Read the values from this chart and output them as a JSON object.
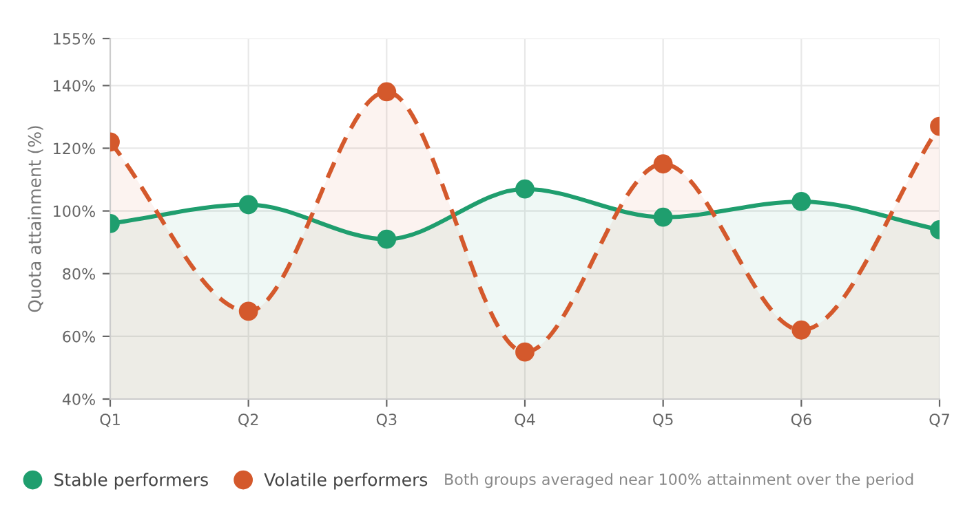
{
  "chart_data": {
    "type": "area",
    "ylabel": "Quota attainment (%)",
    "categories": [
      "Q1",
      "Q2",
      "Q3",
      "Q4",
      "Q5",
      "Q6",
      "Q7"
    ],
    "series": [
      {
        "name": "Stable performers",
        "color": "#1f9e6e",
        "values": [
          96,
          102,
          91,
          107,
          98,
          103,
          94
        ],
        "line_style": "solid"
      },
      {
        "name": "Volatile performers",
        "color": "#d4592c",
        "values": [
          122,
          68,
          138,
          55,
          115,
          62,
          127
        ],
        "line_style": "dashed"
      }
    ],
    "ylim": [
      40,
      155
    ],
    "yticks": [
      {
        "value": 40,
        "label": "40%"
      },
      {
        "value": 60,
        "label": "60%"
      },
      {
        "value": 80,
        "label": "80%"
      },
      {
        "value": 100,
        "label": "100%"
      },
      {
        "value": 120,
        "label": "120%"
      },
      {
        "value": 140,
        "label": "140%"
      },
      {
        "value": 155,
        "label": "155%"
      }
    ],
    "grid": true,
    "legend": "bottom",
    "marker": "circle",
    "annotations": [
      "Both groups averaged near 100% attainment over the period"
    ]
  }
}
